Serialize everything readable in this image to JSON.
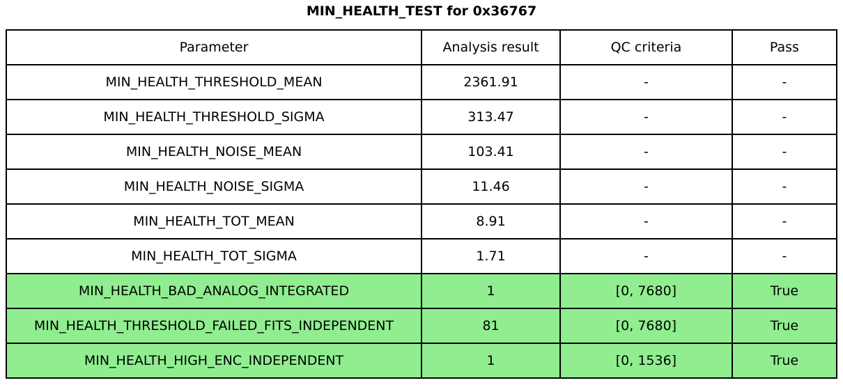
{
  "title": "MIN_HEALTH_TEST for 0x36767",
  "colors": {
    "pass_row_background": "#90EE90",
    "border": "#000000",
    "background": "#ffffff",
    "text": "#000000"
  },
  "chart_data": {
    "type": "table",
    "title": "MIN_HEALTH_TEST for 0x36767",
    "columns": [
      "Parameter",
      "Analysis result",
      "QC criteria",
      "Pass"
    ],
    "rows": [
      {
        "parameter": "MIN_HEALTH_THRESHOLD_MEAN",
        "result": "2361.91",
        "qc": "-",
        "pass": "-",
        "highlight": false
      },
      {
        "parameter": "MIN_HEALTH_THRESHOLD_SIGMA",
        "result": "313.47",
        "qc": "-",
        "pass": "-",
        "highlight": false
      },
      {
        "parameter": "MIN_HEALTH_NOISE_MEAN",
        "result": "103.41",
        "qc": "-",
        "pass": "-",
        "highlight": false
      },
      {
        "parameter": "MIN_HEALTH_NOISE_SIGMA",
        "result": "11.46",
        "qc": "-",
        "pass": "-",
        "highlight": false
      },
      {
        "parameter": "MIN_HEALTH_TOT_MEAN",
        "result": "8.91",
        "qc": "-",
        "pass": "-",
        "highlight": false
      },
      {
        "parameter": "MIN_HEALTH_TOT_SIGMA",
        "result": "1.71",
        "qc": "-",
        "pass": "-",
        "highlight": false
      },
      {
        "parameter": "MIN_HEALTH_BAD_ANALOG_INTEGRATED",
        "result": "1",
        "qc": "[0, 7680]",
        "pass": "True",
        "highlight": true
      },
      {
        "parameter": "MIN_HEALTH_THRESHOLD_FAILED_FITS_INDEPENDENT",
        "result": "81",
        "qc": "[0, 7680]",
        "pass": "True",
        "highlight": true
      },
      {
        "parameter": "MIN_HEALTH_HIGH_ENC_INDEPENDENT",
        "result": "1",
        "qc": "[0, 1536]",
        "pass": "True",
        "highlight": true
      }
    ],
    "layout": {
      "highlight_meaning": "rows with QC criteria evaluated and passing are filled light green",
      "grid": "all cell borders drawn in black"
    }
  }
}
